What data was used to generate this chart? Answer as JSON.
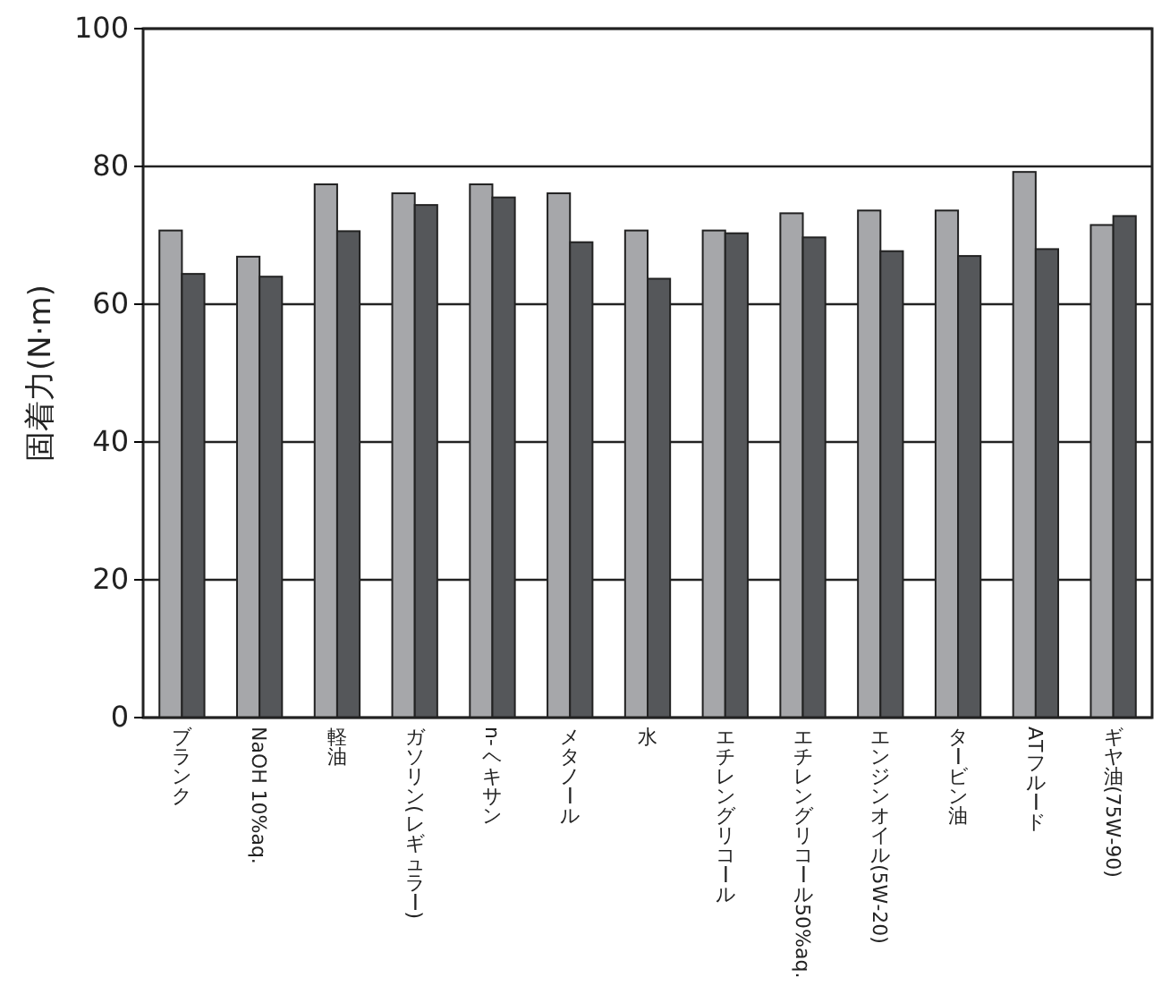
{
  "chart_data": {
    "type": "bar",
    "ylabel": "固着力(N·m)",
    "categories": [
      "ブランク",
      "NaOH 10%aq.",
      "軽油",
      "ガソリン(レギュラー)",
      "n-ヘキサン",
      "メタノール",
      "水",
      "エチレングリコール",
      "エチレングリコール50%aq.",
      "エンジンオイル(5W-20)",
      "タービン油",
      "ATフルード",
      "ギヤ油(75W-90)"
    ],
    "series": [
      {
        "color": "#a6a7aa",
        "values": [
          70.7,
          66.9,
          77.4,
          76.1,
          77.4,
          76.1,
          70.7,
          70.7,
          73.2,
          73.6,
          73.6,
          79.2,
          71.5
        ]
      },
      {
        "color": "#55575a",
        "values": [
          64.4,
          64.0,
          70.6,
          74.4,
          75.5,
          69.0,
          63.7,
          70.3,
          69.7,
          67.7,
          67.0,
          68.0,
          72.8
        ]
      }
    ],
    "ylim": [
      0,
      100
    ],
    "yticks": [
      0,
      20,
      40,
      60,
      80,
      100
    ],
    "grid": "y"
  }
}
